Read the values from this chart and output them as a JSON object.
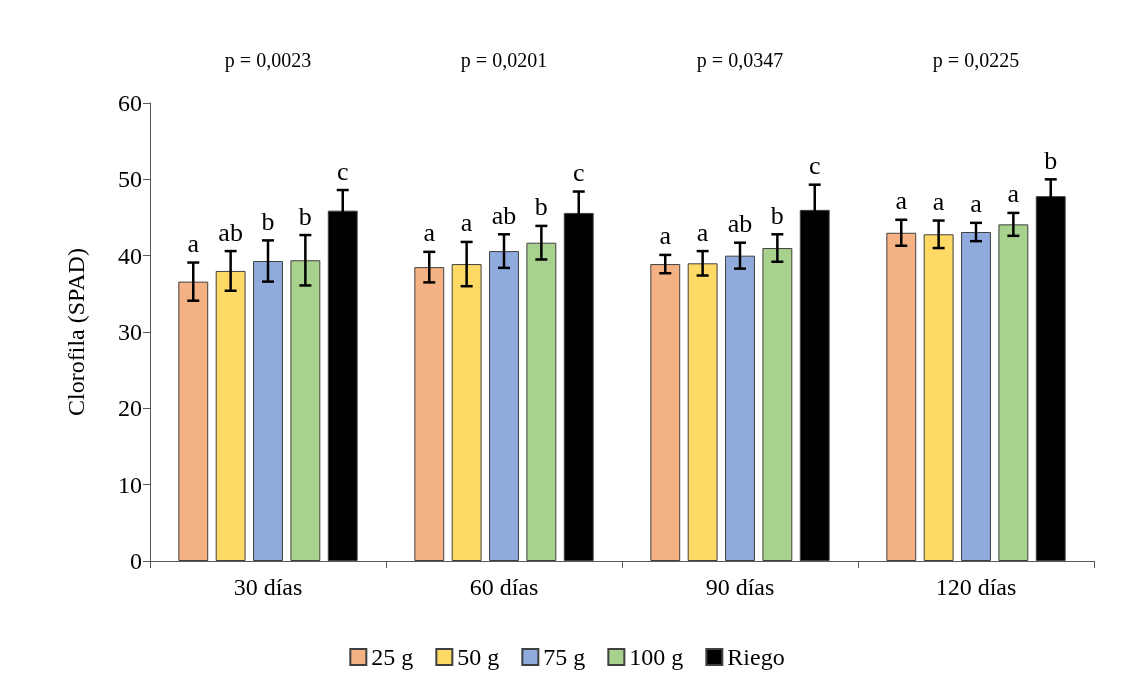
{
  "chart_data": {
    "type": "bar",
    "ylabel": "Clorofila (SPAD)",
    "categories": [
      "30 días",
      "60 días",
      "90 días",
      "120 días"
    ],
    "ylim": [
      0,
      60
    ],
    "yticks": [
      0,
      10,
      20,
      30,
      40,
      50,
      60
    ],
    "grid": false,
    "legend": "bottom",
    "series": [
      {
        "name": "25 g",
        "color": "#f4b183",
        "values": [
          36.6,
          38.5,
          38.9,
          43.0
        ],
        "errors": [
          2.5,
          2.0,
          1.2,
          1.7
        ],
        "value_labels": [
          "a",
          "a",
          "a",
          "a"
        ]
      },
      {
        "name": "50 g",
        "color": "#ffd966",
        "values": [
          38.0,
          38.9,
          39.0,
          42.8
        ],
        "errors": [
          2.6,
          2.9,
          1.6,
          1.8
        ],
        "value_labels": [
          "ab",
          "a",
          "a",
          "a"
        ]
      },
      {
        "name": "75 g",
        "color": "#8faadc",
        "values": [
          39.3,
          40.6,
          40.0,
          43.1
        ],
        "errors": [
          2.7,
          2.2,
          1.7,
          1.2
        ],
        "value_labels": [
          "b",
          "ab",
          "ab",
          "a"
        ]
      },
      {
        "name": "100 g",
        "color": "#a9d18e",
        "values": [
          39.4,
          41.7,
          41.0,
          44.1
        ],
        "errors": [
          3.3,
          2.2,
          1.8,
          1.5
        ],
        "value_labels": [
          "b",
          "b",
          "b",
          "a"
        ]
      },
      {
        "name": "Riego",
        "color": "#000000",
        "values": [
          45.9,
          45.6,
          46.0,
          47.8
        ],
        "errors": [
          2.7,
          2.8,
          3.3,
          2.2
        ],
        "value_labels": [
          "c",
          "c",
          "c",
          "b"
        ]
      }
    ],
    "annotations": [
      "p = 0,0023",
      "p = 0,0201",
      "p = 0,0347",
      "p = 0,0225"
    ]
  }
}
